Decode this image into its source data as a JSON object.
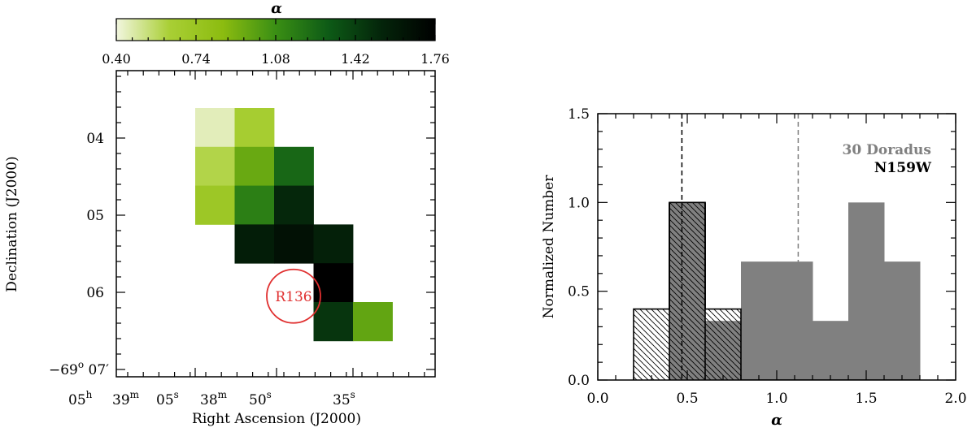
{
  "chart_data": [
    {
      "type": "heatmap",
      "colorbar": {
        "label": "α",
        "min": 0.4,
        "max": 1.76,
        "tick_labels": [
          "0.40",
          "0.74",
          "1.08",
          "1.42",
          "1.76"
        ],
        "colors": [
          "#f2f6df",
          "#a9cf35",
          "#8cbc10",
          "#3a8f14",
          "#0d5a16",
          "#04240a",
          "#000000"
        ]
      },
      "xlabel": "Right Ascension (J2000)",
      "ylabel": "Declination (J2000)",
      "x_tick_labels": [
        {
          "main": "05",
          "sup": "h",
          "id": "ra-05h"
        },
        {
          "main": "39",
          "sup": "m",
          "id": "ra-39m"
        },
        {
          "main": "05",
          "sup": "s",
          "id": "ra-05s"
        },
        {
          "main": "38",
          "sup": "m",
          "id": "ra-38m"
        },
        {
          "main": "50",
          "sup": "s",
          "id": "ra-50s"
        },
        {
          "main": "35",
          "sup": "s",
          "id": "ra-35s"
        }
      ],
      "y_tick_labels": [
        {
          "label": "04",
          "value": 4
        },
        {
          "label": "05",
          "value": 5
        },
        {
          "label": "06",
          "value": 6
        }
      ],
      "y_bottom_label": {
        "prefix": "−69",
        "sup": "o",
        "suffix": " 07′",
        "value": 7
      },
      "grid": {
        "cols": 6,
        "rows": 7
      },
      "cells": [
        {
          "col": 0,
          "row": 0,
          "alpha": 0.45
        },
        {
          "col": 1,
          "row": 0,
          "alpha": 0.65
        },
        {
          "col": 0,
          "row": 1,
          "alpha": 0.6
        },
        {
          "col": 1,
          "row": 1,
          "alpha": 0.95
        },
        {
          "col": 2,
          "row": 1,
          "alpha": 1.25
        },
        {
          "col": 0,
          "row": 2,
          "alpha": 0.72
        },
        {
          "col": 1,
          "row": 2,
          "alpha": 1.15
        },
        {
          "col": 2,
          "row": 2,
          "alpha": 1.52
        },
        {
          "col": 1,
          "row": 3,
          "alpha": 1.58
        },
        {
          "col": 2,
          "row": 3,
          "alpha": 1.65
        },
        {
          "col": 3,
          "row": 3,
          "alpha": 1.56
        },
        {
          "col": 3,
          "row": 4,
          "alpha": 1.76
        },
        {
          "col": 3,
          "row": 5,
          "alpha": 1.46
        },
        {
          "col": 4,
          "row": 5,
          "alpha": 0.97
        }
      ],
      "annotation": {
        "label": "R136",
        "color": "#e03030",
        "dec": 6.05
      }
    },
    {
      "type": "bar",
      "title": "",
      "xlabel": "α",
      "ylabel": "Normalized Number",
      "xlim": [
        0.0,
        2.0
      ],
      "ylim": [
        0.0,
        1.5
      ],
      "x_tick_labels": [
        "0.0",
        "0.5",
        "1.0",
        "1.5",
        "2.0"
      ],
      "x_tick_values": [
        0.0,
        0.5,
        1.0,
        1.5,
        2.0
      ],
      "y_tick_labels": [
        "0.0",
        "0.5",
        "1.0",
        "1.5"
      ],
      "y_tick_values": [
        0.0,
        0.5,
        1.0,
        1.5
      ],
      "bin_edges": [
        0.2,
        0.4,
        0.6,
        0.8,
        1.0,
        1.2,
        1.4,
        1.6,
        1.8
      ],
      "series": [
        {
          "name": "30 Doradus",
          "values": [
            0.0,
            1.0,
            0.333,
            0.667,
            0.667,
            0.333,
            1.0,
            0.667
          ],
          "color": "#808080",
          "median": 1.12
        },
        {
          "name": "N159W",
          "values": [
            0.4,
            1.0,
            0.4,
            0.0,
            0.0,
            0.0,
            0.0,
            0.0
          ],
          "color": "#000000",
          "median": 0.47
        }
      ],
      "legend": [
        "30 Doradus",
        "N159W"
      ],
      "legend_colors": [
        "#808080",
        "#000000"
      ]
    }
  ]
}
